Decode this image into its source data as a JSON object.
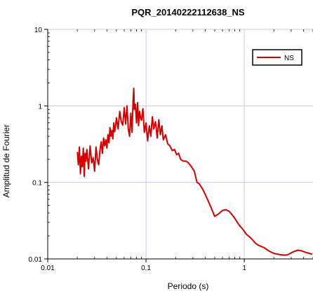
{
  "chart_data": {
    "type": "line",
    "title": "PQR_20140222112638_NS",
    "xlabel": "Periodo (s)",
    "ylabel": "Amplitud de Fourier",
    "x_scale": "log",
    "y_scale": "log",
    "xlim": [
      0.01,
      5
    ],
    "ylim": [
      0.01,
      10
    ],
    "x_ticks": [
      {
        "value": 0.01,
        "label": "0.01"
      },
      {
        "value": 0.1,
        "label": "0.1"
      },
      {
        "value": 1,
        "label": "1"
      }
    ],
    "y_ticks": [
      {
        "value": 0.01,
        "label": "0.01"
      },
      {
        "value": 0.1,
        "label": "0.1"
      },
      {
        "value": 1,
        "label": "1"
      },
      {
        "value": 10,
        "label": "10"
      }
    ],
    "grid": true,
    "legend_position": "top-right",
    "colors": {
      "series": "#d40000",
      "grid": "#c8c8f0",
      "axis": "#000000"
    },
    "series": [
      {
        "name": "NS",
        "x": [
          0.02,
          0.0205,
          0.021,
          0.0215,
          0.022,
          0.0225,
          0.023,
          0.0235,
          0.024,
          0.0245,
          0.025,
          0.026,
          0.027,
          0.028,
          0.029,
          0.03,
          0.031,
          0.032,
          0.033,
          0.034,
          0.035,
          0.036,
          0.037,
          0.038,
          0.039,
          0.04,
          0.041,
          0.042,
          0.043,
          0.044,
          0.045,
          0.046,
          0.047,
          0.048,
          0.049,
          0.05,
          0.052,
          0.054,
          0.056,
          0.058,
          0.06,
          0.062,
          0.064,
          0.066,
          0.068,
          0.07,
          0.072,
          0.074,
          0.075,
          0.076,
          0.078,
          0.08,
          0.082,
          0.084,
          0.086,
          0.088,
          0.09,
          0.093,
          0.096,
          0.1,
          0.104,
          0.108,
          0.112,
          0.116,
          0.12,
          0.125,
          0.13,
          0.135,
          0.14,
          0.145,
          0.15,
          0.158,
          0.166,
          0.175,
          0.185,
          0.195,
          0.205,
          0.215,
          0.225,
          0.24,
          0.255,
          0.27,
          0.29,
          0.31,
          0.33,
          0.35,
          0.38,
          0.41,
          0.45,
          0.5,
          0.55,
          0.6,
          0.65,
          0.7,
          0.75,
          0.8,
          0.85,
          0.9,
          0.95,
          1.0,
          1.05,
          1.1,
          1.15,
          1.2,
          1.3,
          1.4,
          1.5,
          1.6,
          1.7,
          1.8,
          2.0,
          2.2,
          2.4,
          2.6,
          2.8,
          3.0,
          3.2,
          3.5,
          3.8,
          4.2,
          4.6,
          5.0
        ],
        "y": [
          0.25,
          0.17,
          0.29,
          0.13,
          0.22,
          0.16,
          0.28,
          0.12,
          0.24,
          0.19,
          0.27,
          0.15,
          0.3,
          0.18,
          0.21,
          0.14,
          0.29,
          0.2,
          0.17,
          0.26,
          0.34,
          0.24,
          0.38,
          0.3,
          0.36,
          0.28,
          0.42,
          0.33,
          0.52,
          0.4,
          0.48,
          0.37,
          0.6,
          0.46,
          0.55,
          0.7,
          0.5,
          0.85,
          0.62,
          0.56,
          0.95,
          0.58,
          1.0,
          0.5,
          0.4,
          0.8,
          0.45,
          1.2,
          1.7,
          0.9,
          1.05,
          0.6,
          1.1,
          0.55,
          0.85,
          0.7,
          0.65,
          0.92,
          0.45,
          0.6,
          0.35,
          0.55,
          0.4,
          0.72,
          0.5,
          0.62,
          0.38,
          0.66,
          0.42,
          0.55,
          0.36,
          0.42,
          0.32,
          0.3,
          0.26,
          0.27,
          0.23,
          0.24,
          0.2,
          0.19,
          0.19,
          0.18,
          0.16,
          0.14,
          0.1,
          0.095,
          0.08,
          0.065,
          0.05,
          0.036,
          0.039,
          0.043,
          0.044,
          0.042,
          0.038,
          0.034,
          0.03,
          0.027,
          0.025,
          0.023,
          0.021,
          0.02,
          0.019,
          0.018,
          0.016,
          0.015,
          0.0145,
          0.014,
          0.0132,
          0.0126,
          0.0118,
          0.0115,
          0.0113,
          0.0112,
          0.0114,
          0.012,
          0.0125,
          0.013,
          0.0128,
          0.0122,
          0.0118,
          0.0115
        ]
      }
    ]
  }
}
